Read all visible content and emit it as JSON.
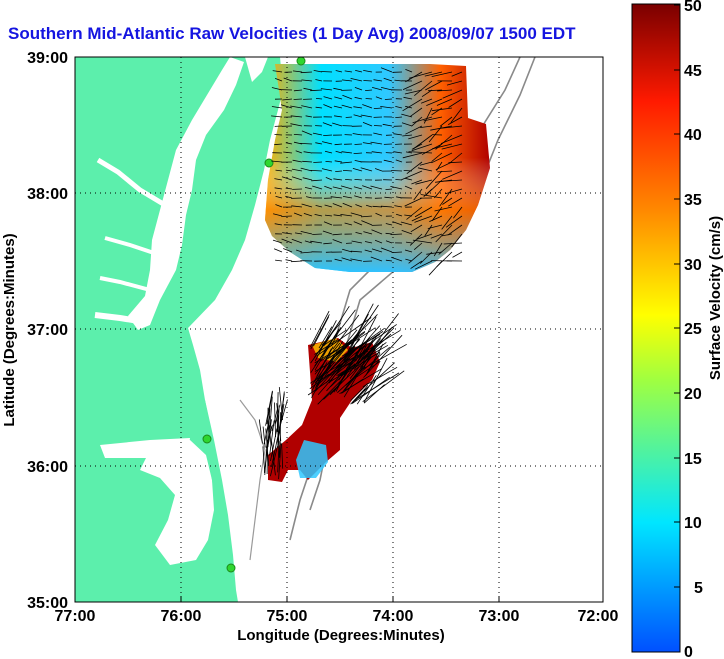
{
  "header": {
    "title": "Southern Mid-Atlantic Raw Velocities (1 Day Avg) 2008/09/07 1500 EDT"
  },
  "map": {
    "xlabel": "Longitude (Degrees:Minutes)",
    "ylabel": "Latitude (Degrees:Minutes)",
    "lon_ticks": [
      "77:00",
      "76:00",
      "75:00",
      "74:00",
      "73:00",
      "72:00"
    ],
    "lat_ticks": [
      "39:00",
      "38:00",
      "37:00",
      "36:00",
      "35:00"
    ],
    "lon_range": [
      -77,
      -72
    ],
    "lat_range": [
      35,
      39
    ],
    "grid": "dotted",
    "land_color": "#5cefac",
    "ocean_color": "#ffffff",
    "station_color": "#2fd62f"
  },
  "colorbar": {
    "label": "Surface Velocity (cm/s)",
    "ticks": [
      "50",
      "45",
      "40",
      "35",
      "30",
      "25",
      "20",
      "15",
      "10",
      "5",
      "0"
    ],
    "range": [
      0,
      50
    ],
    "colors": [
      "#0050ff",
      "#00e6ff",
      "#a0ff40",
      "#ffff00",
      "#ff8a00",
      "#ff1a00",
      "#7a0000"
    ]
  }
}
